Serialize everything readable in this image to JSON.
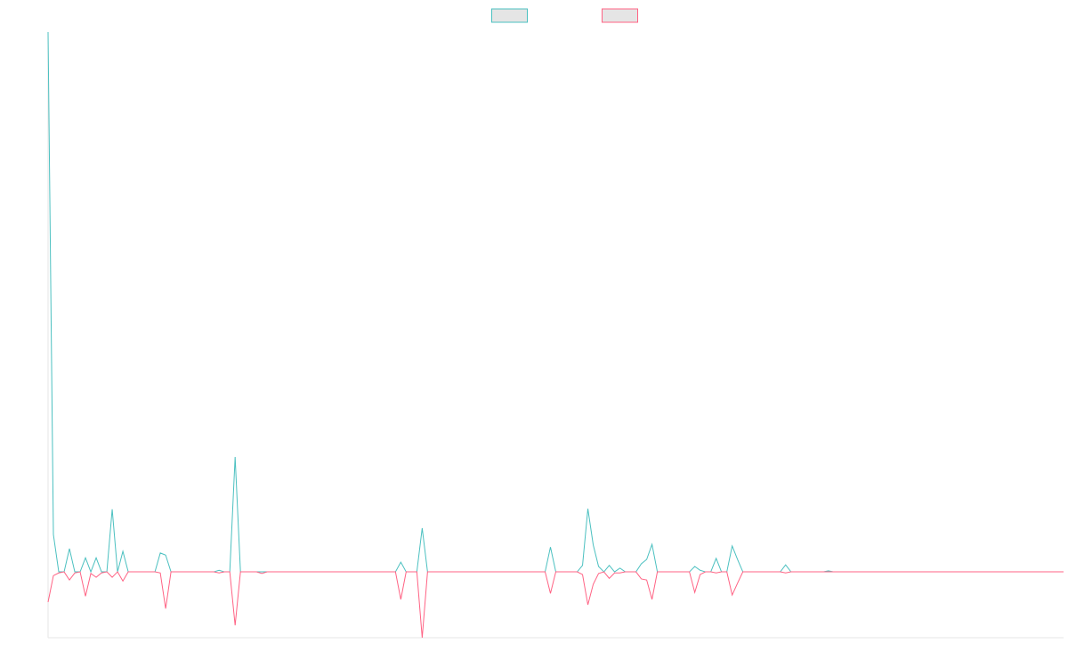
{
  "chart_data": {
    "type": "line",
    "legend": "top",
    "grid": false,
    "ylim": [
      -12.2,
      100
    ],
    "categories": [
      null,
      null,
      null,
      null,
      null,
      null,
      null,
      null,
      null,
      null,
      null,
      null,
      null,
      null,
      null,
      null,
      null,
      null,
      null,
      null,
      null,
      null,
      null,
      null,
      null,
      null,
      null,
      null,
      null,
      null,
      null,
      null,
      null,
      null,
      null,
      null,
      null,
      null,
      null,
      null,
      null,
      null,
      null,
      null,
      null,
      null,
      null,
      null,
      null,
      null,
      null,
      null,
      null,
      null,
      null,
      null,
      null,
      null,
      null,
      null,
      null,
      null,
      null,
      null,
      null,
      null,
      null,
      null,
      null,
      null,
      null,
      null,
      null,
      null,
      null,
      null,
      null,
      null,
      null,
      null,
      null,
      null,
      null,
      null,
      null,
      null,
      null,
      null,
      null,
      null,
      null,
      null,
      null,
      null,
      null,
      null,
      null,
      null,
      null,
      null,
      null,
      null,
      null,
      null,
      null,
      null,
      null,
      null,
      null,
      null,
      null,
      null,
      null,
      null,
      null,
      null,
      null,
      null,
      null,
      null,
      null,
      null,
      null,
      null,
      null,
      null,
      null,
      null,
      null,
      null,
      null,
      null,
      null,
      null,
      null,
      null,
      null,
      null,
      null,
      null,
      null,
      null,
      null,
      null,
      null,
      null,
      null,
      null,
      null,
      null,
      null,
      null,
      null,
      null,
      null,
      null,
      null,
      null,
      null,
      null,
      null,
      null,
      null,
      null,
      null,
      null,
      null,
      null,
      null,
      null,
      null,
      null,
      null,
      null,
      null,
      null,
      null,
      null,
      null,
      null,
      null,
      null,
      null,
      null,
      null,
      null,
      null,
      null,
      null,
      null,
      null
    ],
    "series": [
      {
        "color": "#4bc0c0",
        "values": [
          100,
          6.9,
          0,
          0,
          4.3,
          0,
          0,
          2.6,
          0,
          2.6,
          0,
          0,
          11.6,
          0,
          3.8,
          0,
          0,
          0,
          0,
          0,
          0,
          3.5,
          3.1,
          0,
          0,
          0,
          0,
          0,
          0,
          0,
          0,
          0,
          0.3,
          0,
          0,
          21.3,
          0,
          0,
          0,
          0,
          0,
          0,
          0,
          0,
          0,
          0,
          0,
          0,
          0,
          0,
          0,
          0,
          0,
          0,
          0,
          0,
          0,
          0,
          0,
          0,
          0,
          0,
          0,
          0,
          0,
          0,
          1.8,
          0,
          0,
          0,
          8.1,
          0,
          0,
          0,
          0,
          0,
          0,
          0,
          0,
          0,
          0,
          0,
          0,
          0,
          0,
          0,
          0,
          0,
          0,
          0,
          0,
          0,
          0,
          0,
          4.6,
          0,
          0,
          0,
          0,
          0,
          1.2,
          11.7,
          5.0,
          1.0,
          0,
          1.2,
          0,
          0.7,
          0,
          0,
          0,
          1.5,
          2.3,
          5.1,
          0,
          0,
          0,
          0,
          0,
          0,
          0,
          1.0,
          0.3,
          0,
          0,
          2.5,
          0,
          0,
          4.8,
          2.3,
          0,
          0,
          0,
          0,
          0,
          0,
          0,
          0,
          1.3,
          0,
          0,
          0,
          0,
          0,
          0,
          0,
          0.2,
          0,
          0,
          0,
          0,
          0,
          0,
          0,
          0,
          0,
          0,
          0,
          0,
          0,
          0,
          0,
          0,
          0,
          0,
          0,
          0,
          0,
          0,
          0,
          0,
          0,
          0,
          0,
          0,
          0,
          0,
          0,
          0,
          0,
          0,
          0,
          0,
          0,
          0,
          0,
          0,
          0,
          0,
          0,
          0
        ]
      },
      {
        "color": "#ff6384",
        "values": [
          -5.6,
          -0.7,
          -0.2,
          0,
          -1.5,
          -0.2,
          0,
          -4.5,
          -0.3,
          -1.0,
          -0.2,
          0,
          -1.0,
          0,
          -1.7,
          0,
          0,
          0,
          0,
          0,
          0,
          -0.2,
          -6.8,
          0,
          0,
          0,
          0,
          0,
          0,
          0,
          0,
          0,
          -0.2,
          0,
          0,
          -9.9,
          0,
          0,
          0,
          0,
          -0.3,
          0,
          0,
          0,
          0,
          0,
          0,
          0,
          0,
          0,
          0,
          0,
          0,
          0,
          0,
          0,
          0,
          0,
          0,
          0,
          0,
          0,
          0,
          0,
          0,
          0,
          -5.1,
          0,
          0,
          0,
          -12.2,
          0,
          0,
          0,
          0,
          0,
          0,
          0,
          0,
          0,
          0,
          0,
          0,
          0,
          0,
          0,
          0,
          0,
          0,
          0,
          0,
          0,
          0,
          0,
          -4.0,
          0,
          0,
          0,
          0,
          0,
          -0.5,
          -6.1,
          -2.3,
          -0.3,
          0,
          -1.2,
          -0.2,
          -0.2,
          0,
          0,
          0,
          -1.3,
          -1.5,
          -5.1,
          0,
          0,
          0,
          0,
          0,
          0,
          0,
          -3.8,
          -0.5,
          0,
          0,
          -0.2,
          0,
          0,
          -4.3,
          -2.1,
          0,
          0,
          0,
          0,
          0,
          0,
          0,
          0,
          -0.2,
          0,
          0,
          0,
          0,
          0,
          0,
          0,
          0,
          0,
          0,
          0,
          0,
          0,
          0,
          0,
          0,
          0,
          0,
          0,
          0,
          0,
          0,
          0,
          0,
          0,
          0,
          0,
          0,
          0,
          0,
          0,
          0,
          0,
          0,
          0,
          0,
          0,
          0,
          0,
          0,
          0,
          0,
          0,
          0,
          0,
          0,
          0,
          0,
          0,
          0,
          0,
          0
        ]
      }
    ]
  }
}
